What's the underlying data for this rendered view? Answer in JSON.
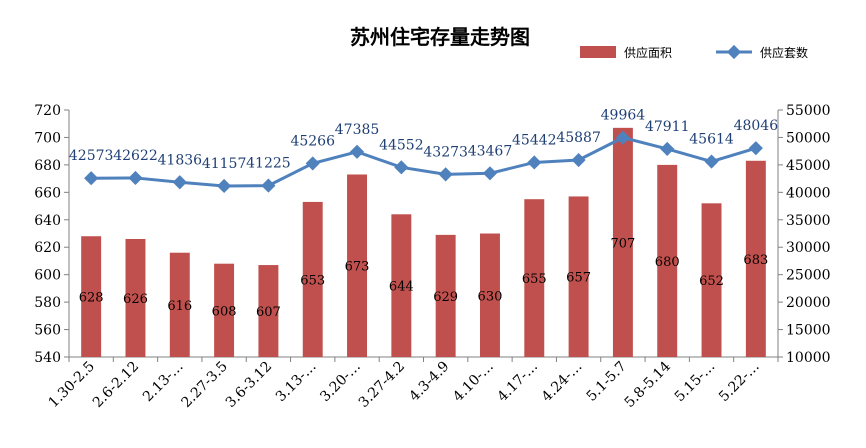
{
  "chart_data": {
    "type": "bar",
    "title": "苏州住宅存量走势图",
    "categories": [
      "1.30-2.5",
      "2.6-2.12",
      "2.13-…",
      "2.27-3.5",
      "3.6-3.12",
      "3.13-…",
      "3.20-…",
      "3.27-4.2",
      "4.3-4.9",
      "4.10-…",
      "4.17-…",
      "4.24-…",
      "5.1-5.7",
      "5.8-5.14",
      "5.15-…",
      "5.22-…"
    ],
    "series": [
      {
        "name": "供应面积",
        "type": "bar",
        "axis": "left",
        "color": "#C0504D",
        "values": [
          628,
          626,
          616,
          608,
          607,
          653,
          673,
          644,
          629,
          630,
          655,
          657,
          707,
          680,
          652,
          683
        ],
        "labels": [
          "628",
          "626",
          "616",
          "608",
          "607",
          "653",
          "673",
          "644",
          "629",
          "630",
          "655",
          "657",
          "707",
          "680",
          "652",
          "683"
        ]
      },
      {
        "name": "供应套数",
        "type": "line",
        "axis": "right",
        "color": "#4F81BD",
        "values": [
          42573,
          42622,
          41836,
          41157,
          41225,
          45266,
          47385,
          44552,
          43273,
          43467,
          45442,
          45887,
          49964,
          47911,
          45614,
          48046
        ],
        "labels": [
          "42573",
          "42622",
          "41836",
          "41157",
          "41225",
          "45266",
          "47385",
          "44552",
          "43273",
          "43467",
          "45442",
          "45887",
          "49964",
          "47911",
          "45614",
          "48046"
        ]
      }
    ],
    "y_left": {
      "min": 540,
      "max": 720,
      "step": 20,
      "ticks": [
        "540",
        "560",
        "580",
        "600",
        "620",
        "640",
        "660",
        "680",
        "700",
        "720"
      ]
    },
    "y_right": {
      "min": 10000,
      "max": 55000,
      "step": 5000,
      "ticks": [
        "10000",
        "15000",
        "20000",
        "25000",
        "30000",
        "35000",
        "40000",
        "45000",
        "50000",
        "55000"
      ]
    },
    "grid": false,
    "legend_position": "top-right"
  }
}
